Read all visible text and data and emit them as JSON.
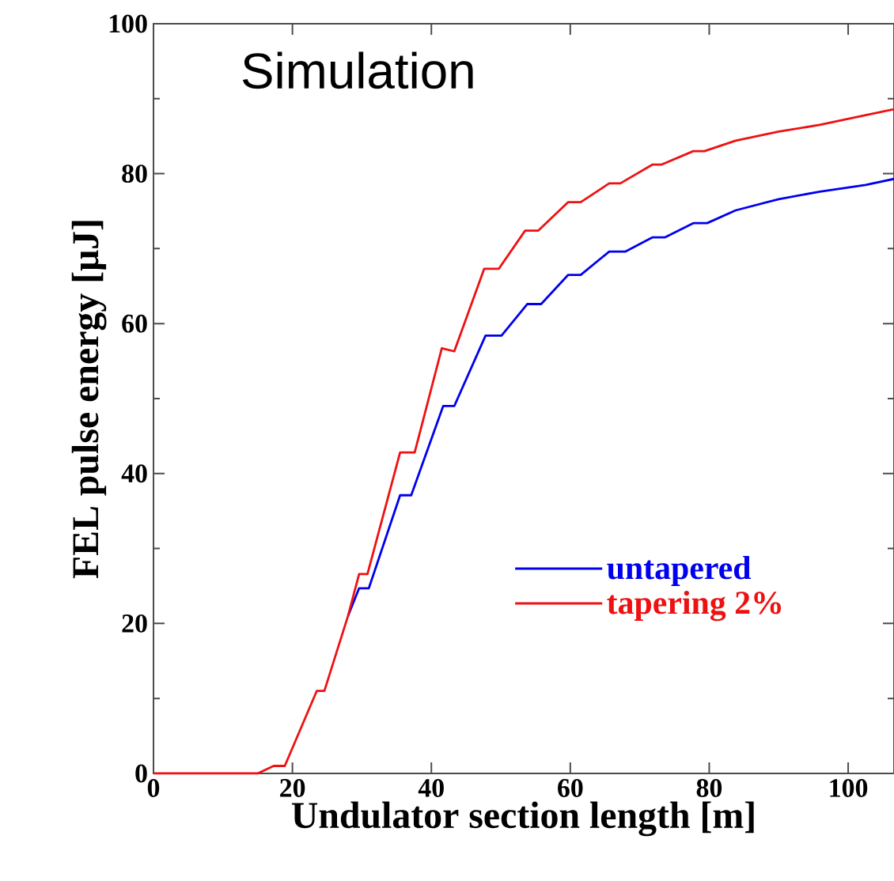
{
  "chart_data": {
    "type": "line",
    "xlabel": "Undulator section length [m]",
    "ylabel": "FEL pulse energy [μJ]",
    "annotations": [
      "Simulation"
    ],
    "xlim": [
      0,
      106.6
    ],
    "ylim": [
      0,
      100
    ],
    "xticks": [
      0,
      20,
      40,
      60,
      80,
      100
    ],
    "yticks": [
      0,
      20,
      40,
      60,
      80,
      100
    ],
    "legend": "right",
    "line_style": "solid",
    "marker": "none",
    "grid": false,
    "series": [
      {
        "name": "untapered",
        "color": "#0000ee",
        "x": [
          28,
          29.6,
          31,
          35.5,
          37.1,
          41.7,
          43.3,
          47.8,
          50.1,
          53.8,
          55.8,
          59.7,
          61.5,
          65.6,
          67.9,
          71.8,
          73.6,
          77.7,
          79.7,
          83.8,
          90,
          95.9,
          102.5,
          106.6
        ],
        "values": [
          21,
          24.7,
          24.7,
          37.1,
          37.1,
          49,
          49,
          58.4,
          58.4,
          62.6,
          62.6,
          66.5,
          66.5,
          69.6,
          69.6,
          71.5,
          71.5,
          73.4,
          73.4,
          75.1,
          76.6,
          77.6,
          78.5,
          79.3
        ]
      },
      {
        "name": "tapering 2%",
        "color": "#ee1111",
        "x": [
          0,
          15,
          17.3,
          18.9,
          23.5,
          24.6,
          28,
          29.6,
          30.8,
          35.5,
          37.6,
          41.5,
          43.3,
          47.6,
          49.7,
          53.5,
          55.4,
          59.7,
          61.5,
          65.6,
          67.2,
          71.8,
          73.1,
          77.7,
          79.3,
          83.8,
          90,
          95.9,
          102.5,
          106.6
        ],
        "values": [
          0,
          0,
          1,
          1,
          11,
          11,
          21,
          26.6,
          26.6,
          42.8,
          42.8,
          56.7,
          56.3,
          67.3,
          67.3,
          72.4,
          72.4,
          76.2,
          76.2,
          78.7,
          78.7,
          81.2,
          81.2,
          83,
          83,
          84.4,
          85.6,
          86.5,
          87.8,
          88.6
        ]
      }
    ]
  }
}
